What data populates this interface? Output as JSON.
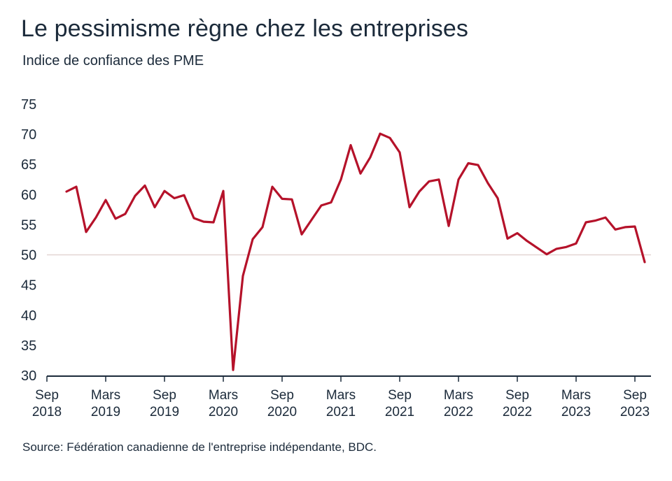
{
  "title": "Le pessimisme règne chez les entreprises",
  "subtitle": "Indice de confiance des PME",
  "source": "Source: Fédération canadienne de l'entreprise indépendante, BDC.",
  "chart_data": {
    "type": "line",
    "title": "Le pessimisme règne chez les entreprises",
    "subtitle": "Indice de confiance des PME",
    "ylim": [
      30,
      75
    ],
    "yticks": [
      30,
      35,
      40,
      45,
      50,
      55,
      60,
      65,
      70,
      75
    ],
    "reference_line": 50,
    "line_color": "#b5122a",
    "xticks": [
      {
        "month": "2018-09",
        "line1": "Sep",
        "line2": "2018"
      },
      {
        "month": "2019-03",
        "line1": "Mars",
        "line2": "2019"
      },
      {
        "month": "2019-09",
        "line1": "Sep",
        "line2": "2019"
      },
      {
        "month": "2020-03",
        "line1": "Mars",
        "line2": "2020"
      },
      {
        "month": "2020-09",
        "line1": "Sep",
        "line2": "2020"
      },
      {
        "month": "2021-03",
        "line1": "Mars",
        "line2": "2021"
      },
      {
        "month": "2021-09",
        "line1": "Sep",
        "line2": "2021"
      },
      {
        "month": "2022-03",
        "line1": "Mars",
        "line2": "2022"
      },
      {
        "month": "2022-09",
        "line1": "Sep",
        "line2": "2022"
      },
      {
        "month": "2023-03",
        "line1": "Mars",
        "line2": "2023"
      },
      {
        "month": "2023-09",
        "line1": "Sep",
        "line2": "2023"
      }
    ],
    "series": [
      {
        "points": [
          [
            "2018-11",
            60.5
          ],
          [
            "2018-12",
            61.3
          ],
          [
            "2019-01",
            53.8
          ],
          [
            "2019-02",
            56.2
          ],
          [
            "2019-03",
            59.1
          ],
          [
            "2019-04",
            56.0
          ],
          [
            "2019-05",
            56.8
          ],
          [
            "2019-06",
            59.8
          ],
          [
            "2019-07",
            61.5
          ],
          [
            "2019-08",
            57.9
          ],
          [
            "2019-09",
            60.6
          ],
          [
            "2019-10",
            59.4
          ],
          [
            "2019-11",
            59.9
          ],
          [
            "2019-12",
            56.1
          ],
          [
            "2020-01",
            55.5
          ],
          [
            "2020-02",
            55.4
          ],
          [
            "2020-03",
            60.6
          ],
          [
            "2020-04",
            30.9
          ],
          [
            "2020-05",
            46.5
          ],
          [
            "2020-06",
            52.6
          ],
          [
            "2020-07",
            54.6
          ],
          [
            "2020-08",
            61.3
          ],
          [
            "2020-09",
            59.3
          ],
          [
            "2020-10",
            59.2
          ],
          [
            "2020-11",
            53.4
          ],
          [
            "2020-12",
            55.8
          ],
          [
            "2021-01",
            58.2
          ],
          [
            "2021-02",
            58.7
          ],
          [
            "2021-03",
            62.5
          ],
          [
            "2021-04",
            68.2
          ],
          [
            "2021-05",
            63.5
          ],
          [
            "2021-06",
            66.2
          ],
          [
            "2021-07",
            70.1
          ],
          [
            "2021-08",
            69.4
          ],
          [
            "2021-09",
            67.0
          ],
          [
            "2021-10",
            57.9
          ],
          [
            "2021-11",
            60.5
          ],
          [
            "2021-12",
            62.2
          ],
          [
            "2022-01",
            62.5
          ],
          [
            "2022-02",
            54.8
          ],
          [
            "2022-03",
            62.5
          ],
          [
            "2022-04",
            65.2
          ],
          [
            "2022-05",
            64.9
          ],
          [
            "2022-06",
            61.9
          ],
          [
            "2022-07",
            59.4
          ],
          [
            "2022-08",
            52.7
          ],
          [
            "2022-09",
            53.6
          ],
          [
            "2022-10",
            52.3
          ],
          [
            "2022-11",
            51.2
          ],
          [
            "2022-12",
            50.1
          ],
          [
            "2023-01",
            51.0
          ],
          [
            "2023-02",
            51.3
          ],
          [
            "2023-03",
            51.9
          ],
          [
            "2023-04",
            55.4
          ],
          [
            "2023-05",
            55.7
          ],
          [
            "2023-06",
            56.2
          ],
          [
            "2023-07",
            54.2
          ],
          [
            "2023-08",
            54.6
          ],
          [
            "2023-09",
            54.7
          ],
          [
            "2023-10",
            48.8
          ]
        ]
      }
    ]
  }
}
